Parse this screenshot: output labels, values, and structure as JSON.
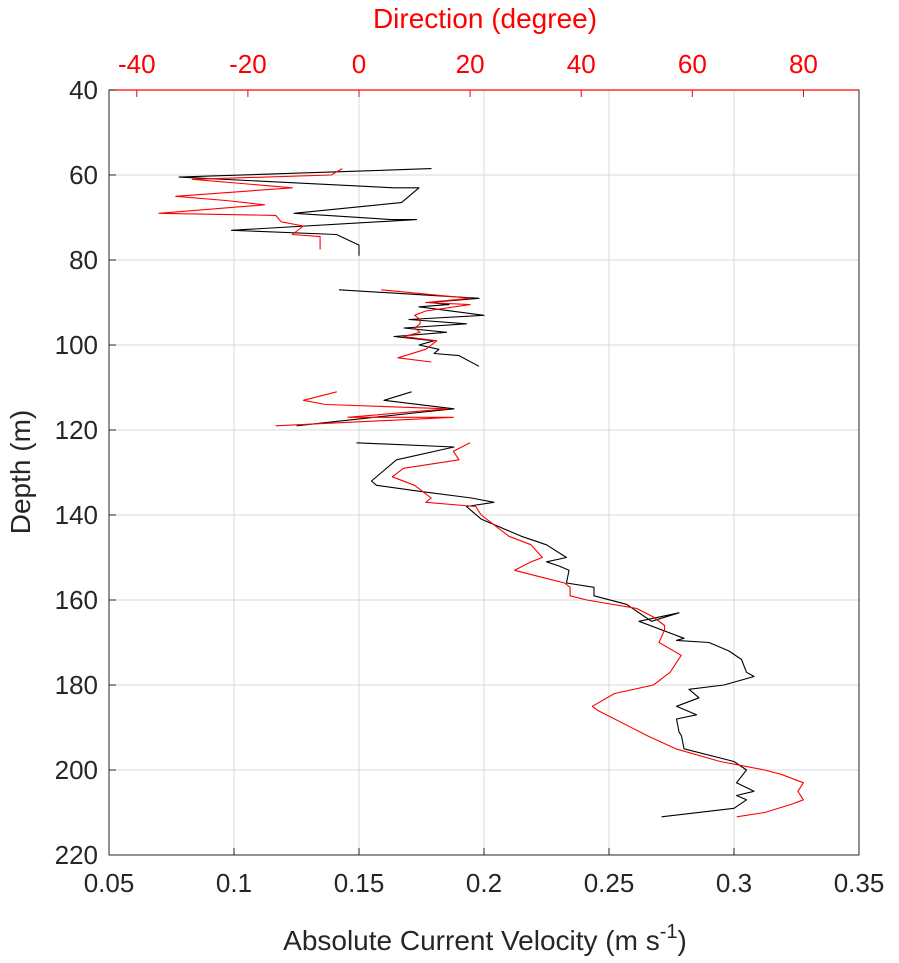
{
  "chart_data": {
    "type": "line",
    "xlabel": "Absolute Current Velocity (m s",
    "xlabel_sup": "-1",
    "xlabel_end": ")",
    "x2label": "Direction (degree)",
    "ylabel": "Depth (m)",
    "xlim": [
      0.05,
      0.35
    ],
    "x2lim": [
      -45,
      90
    ],
    "ylim": [
      40,
      220
    ],
    "y_reversed": true,
    "grid": true,
    "xticks": [
      "0.05",
      "0.1",
      "0.15",
      "0.2",
      "0.25",
      "0.3",
      "0.35"
    ],
    "x2ticks": [
      "-40",
      "-20",
      "0",
      "20",
      "40",
      "60",
      "80"
    ],
    "yticks": [
      "40",
      "60",
      "80",
      "100",
      "120",
      "140",
      "160",
      "180",
      "200",
      "220"
    ],
    "colors": {
      "velocity": "#000000",
      "direction": "#ff0000",
      "grid": "#d9d9d9",
      "frame": "#262626"
    },
    "series": [
      {
        "key": "velocity",
        "axis": "bottom",
        "segments": [
          [
            [
              0.179,
              58.5
            ],
            [
              0.078,
              60.5
            ],
            [
              0.164,
              63
            ],
            [
              0.174,
              63
            ],
            [
              0.167,
              66.5
            ],
            [
              0.158,
              67
            ],
            [
              0.124,
              69
            ],
            [
              0.163,
              70.5
            ],
            [
              0.173,
              70.5
            ],
            [
              0.099,
              73
            ],
            [
              0.141,
              74
            ],
            [
              0.15,
              76.5
            ],
            [
              0.15,
              79
            ]
          ],
          [
            [
              0.142,
              87
            ],
            [
              0.198,
              89
            ],
            [
              0.178,
              90
            ],
            [
              0.186,
              90.5
            ],
            [
              0.174,
              91
            ],
            [
              0.2,
              93
            ],
            [
              0.17,
              94
            ],
            [
              0.193,
              95
            ],
            [
              0.168,
              96
            ],
            [
              0.185,
              97
            ],
            [
              0.164,
              98
            ],
            [
              0.18,
              99
            ],
            [
              0.174,
              100
            ],
            [
              0.182,
              101
            ],
            [
              0.18,
              102
            ],
            [
              0.19,
              102.5
            ],
            [
              0.198,
              105
            ]
          ],
          [
            [
              0.171,
              111
            ],
            [
              0.16,
              113
            ],
            [
              0.188,
              115
            ],
            [
              0.172,
              116
            ],
            [
              0.125,
              119
            ]
          ],
          [
            [
              0.149,
              123
            ],
            [
              0.188,
              124
            ],
            [
              0.165,
              127
            ],
            [
              0.159,
              130
            ],
            [
              0.155,
              132
            ],
            [
              0.157,
              133
            ],
            [
              0.175,
              134.5
            ],
            [
              0.195,
              136
            ],
            [
              0.204,
              137
            ],
            [
              0.193,
              138
            ],
            [
              0.195,
              139
            ],
            [
              0.199,
              141
            ],
            [
              0.215,
              145
            ],
            [
              0.225,
              147
            ],
            [
              0.233,
              150
            ],
            [
              0.225,
              151
            ],
            [
              0.23,
              152
            ],
            [
              0.234,
              153
            ],
            [
              0.233,
              156
            ],
            [
              0.244,
              157
            ],
            [
              0.244,
              159
            ],
            [
              0.257,
              161
            ],
            [
              0.267,
              165
            ],
            [
              0.278,
              163
            ],
            [
              0.262,
              165
            ],
            [
              0.28,
              169
            ],
            [
              0.277,
              169.5
            ],
            [
              0.29,
              170
            ],
            [
              0.298,
              172
            ],
            [
              0.303,
              174
            ],
            [
              0.305,
              177
            ],
            [
              0.308,
              178
            ],
            [
              0.296,
              180
            ],
            [
              0.282,
              181
            ],
            [
              0.286,
              183
            ],
            [
              0.277,
              185
            ],
            [
              0.285,
              187
            ],
            [
              0.277,
              188
            ],
            [
              0.278,
              191
            ],
            [
              0.279,
              192
            ],
            [
              0.28,
              195
            ],
            [
              0.3,
              198
            ],
            [
              0.305,
              200
            ],
            [
              0.301,
              203
            ],
            [
              0.308,
              205
            ],
            [
              0.301,
              206
            ],
            [
              0.305,
              207
            ],
            [
              0.3,
              209
            ],
            [
              0.271,
              211
            ]
          ]
        ]
      },
      {
        "key": "direction",
        "axis": "top",
        "segments": [
          [
            [
              -3,
              58.5
            ],
            [
              -5,
              60
            ],
            [
              -30,
              61
            ],
            [
              -12,
              63
            ],
            [
              -33,
              65
            ],
            [
              -24,
              66
            ],
            [
              -17,
              67
            ],
            [
              -36,
              69
            ],
            [
              -15,
              69.5
            ],
            [
              -14,
              71
            ],
            [
              -10,
              72
            ],
            [
              -12,
              74
            ],
            [
              -7,
              74.5
            ],
            [
              -7,
              77.5
            ]
          ],
          [
            [
              4,
              87
            ],
            [
              20,
              89
            ],
            [
              12,
              90
            ],
            [
              20,
              90.5
            ],
            [
              12,
              92
            ],
            [
              10,
              93
            ],
            [
              11,
              94
            ],
            [
              11,
              95
            ],
            [
              10,
              96
            ],
            [
              11,
              97
            ],
            [
              8,
              98
            ],
            [
              14,
              99
            ],
            [
              12,
              101
            ],
            [
              7,
              103
            ],
            [
              13,
              104
            ]
          ],
          [
            [
              -4,
              111
            ],
            [
              -10,
              113
            ],
            [
              -6,
              114
            ],
            [
              16,
              115
            ],
            [
              -2,
              117
            ],
            [
              17,
              117
            ],
            [
              -15,
              119
            ]
          ],
          [
            [
              20,
              123
            ],
            [
              17,
              125
            ],
            [
              18,
              127
            ],
            [
              8,
              129
            ],
            [
              6,
              131
            ],
            [
              10,
              133
            ],
            [
              12,
              135
            ],
            [
              13,
              136
            ],
            [
              12,
              137
            ],
            [
              21,
              138
            ],
            [
              22,
              140
            ],
            [
              27,
              145
            ],
            [
              31,
              147
            ],
            [
              33,
              150
            ],
            [
              31,
              151
            ],
            [
              28,
              153
            ],
            [
              34,
              155
            ],
            [
              37,
              156
            ],
            [
              38,
              157
            ],
            [
              38,
              159
            ],
            [
              41,
              160
            ],
            [
              50,
              162
            ],
            [
              53,
              164
            ],
            [
              55,
              166
            ],
            [
              55,
              167
            ],
            [
              54,
              170
            ],
            [
              58,
              173
            ],
            [
              56,
              177
            ],
            [
              53,
              180
            ],
            [
              46,
              182
            ],
            [
              42,
              185
            ],
            [
              43,
              186
            ],
            [
              52,
              192
            ],
            [
              57,
              195
            ],
            [
              65,
              198
            ],
            [
              73,
              200
            ],
            [
              76,
              201
            ],
            [
              80,
              203
            ],
            [
              79,
              205
            ],
            [
              80,
              207
            ],
            [
              78,
              208
            ],
            [
              73,
              210
            ],
            [
              68,
              211
            ]
          ]
        ]
      }
    ]
  }
}
